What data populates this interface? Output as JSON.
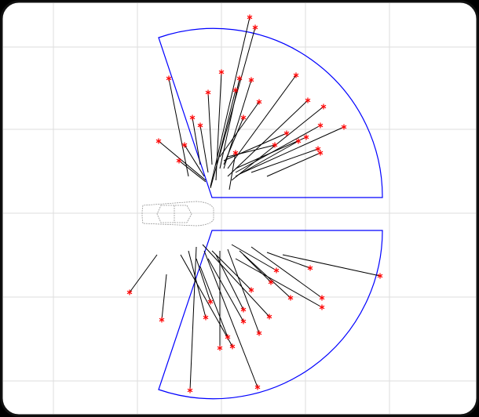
{
  "chart_data": {
    "type": "segments",
    "x0": [
      268,
      268,
      240,
      262,
      262,
      275,
      280,
      285,
      290,
      290,
      295,
      300,
      305,
      320,
      340,
      292,
      270,
      255,
      280,
      285,
      290,
      285,
      275,
      265,
      300,
      260,
      300,
      200,
      212,
      250,
      260,
      280,
      230,
      240,
      258,
      290,
      305,
      320,
      360,
      340,
      295,
      270,
      265,
      250,
      310,
      275,
      255,
      300
    ],
    "y0": [
      238,
      240,
      225,
      230,
      232,
      230,
      215,
      215,
      215,
      225,
      230,
      220,
      222,
      220,
      225,
      242,
      210,
      210,
      200,
      205,
      200,
      210,
      215,
      220,
      215,
      225,
      225,
      325,
      350,
      315,
      320,
      320,
      325,
      320,
      312,
      318,
      320,
      315,
      325,
      322,
      312,
      320,
      330,
      330,
      325,
      325,
      340,
      330
    ],
    "x1": [
      318,
      325,
      215,
      202,
      228,
      282,
      305,
      320,
      377,
      392,
      412,
      408,
      438,
      405,
      408,
      300,
      265,
      245,
      330,
      365,
      350,
      310,
      300,
      255,
      390,
      235,
      380,
      165,
      206,
      242,
      328,
      280,
      296,
      262,
      343,
      330,
      370,
      410,
      484,
      395,
      352,
      320,
      310,
      268,
      345,
      310,
      290,
      410
    ],
    "y1": [
      22,
      35,
      100,
      180,
      205,
      92,
      100,
      102,
      96,
      128,
      136,
      160,
      162,
      190,
      195,
      195,
      118,
      150,
      130,
      170,
      185,
      150,
      115,
      160,
      175,
      185,
      180,
      373,
      408,
      498,
      494,
      444,
      442,
      405,
      404,
      425,
      380,
      380,
      352,
      342,
      345,
      370,
      410,
      385,
      360,
      395,
      430,
      392
    ],
    "xlim": [
      0,
      610
    ],
    "ylim": [
      532,
      0
    ],
    "xticks": [
      68,
      175,
      282,
      389,
      496
    ],
    "yticks": [
      60,
      165,
      272,
      379,
      486
    ],
    "grid": true,
    "line_color": "#000000",
    "marker_color": "#ff0000",
    "sector_color": "#0000ff"
  }
}
